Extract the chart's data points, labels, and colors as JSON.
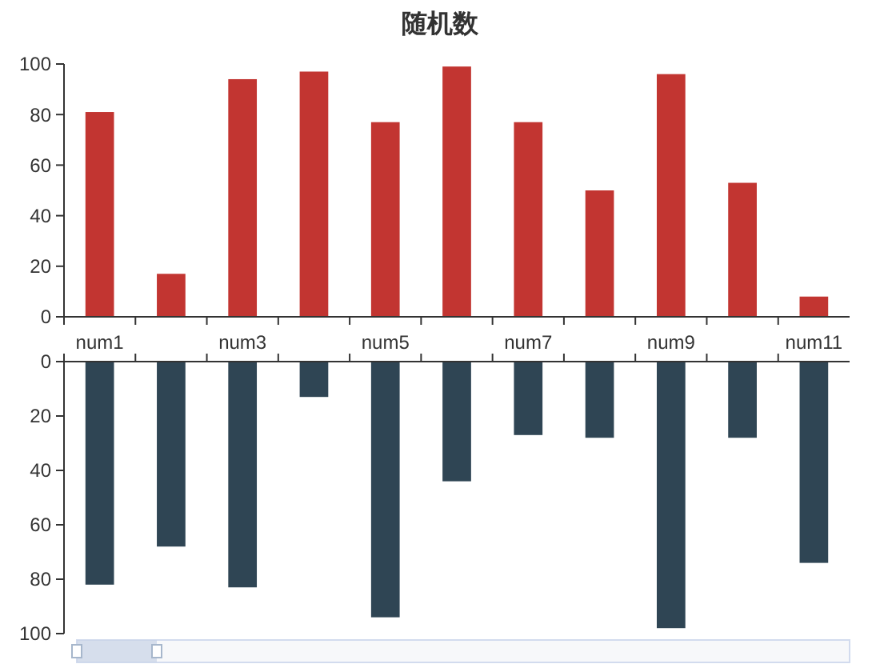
{
  "chart_data": [
    {
      "type": "bar",
      "title": "随机数",
      "categories": [
        "num1",
        null,
        "num3",
        null,
        "num5",
        null,
        "num7",
        null,
        "num9",
        null,
        "num11"
      ],
      "values": [
        81,
        17,
        94,
        97,
        77,
        99,
        77,
        50,
        96,
        53,
        8
      ],
      "color": "#c23531",
      "ylim": [
        0,
        100
      ],
      "yticks": [
        0,
        20,
        40,
        60,
        80,
        100
      ],
      "grid": false
    },
    {
      "type": "bar",
      "categories": [
        null,
        null,
        null,
        null,
        null,
        null,
        null,
        null,
        null,
        null,
        null
      ],
      "values": [
        82,
        68,
        83,
        13,
        94,
        44,
        27,
        28,
        98,
        28,
        74
      ],
      "color": "#2f4554",
      "ylim": [
        100,
        0
      ],
      "yticks": [
        0,
        20,
        40,
        60,
        80,
        100
      ],
      "tick_labels": "y",
      "grid": false
    }
  ]
}
